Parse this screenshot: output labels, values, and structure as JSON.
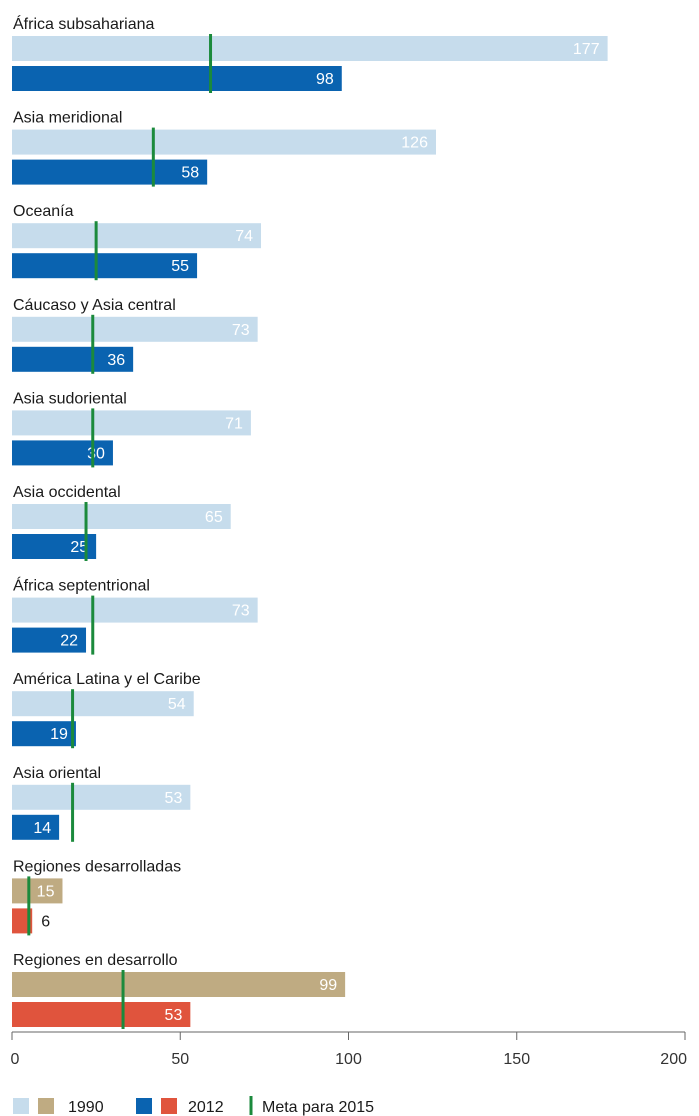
{
  "chart_data": {
    "type": "bar",
    "orientation": "horizontal",
    "xlim": [
      0,
      200
    ],
    "x_ticks": [
      "0",
      "50",
      "100",
      "150",
      "200"
    ],
    "categories": [
      "África subsahariana",
      "Asia meridional",
      "Oceanía",
      "Cáucaso y Asia central",
      "Asia sudoriental",
      "Asia occidental",
      "África septentrional",
      "América Latina y el Caribe",
      "Asia oriental",
      "Regiones desarrolladas",
      "Regiones en desarrollo"
    ],
    "series": [
      {
        "name": "1990",
        "values": [
          177,
          126,
          74,
          73,
          71,
          65,
          73,
          54,
          53,
          15,
          99
        ]
      },
      {
        "name": "2012",
        "values": [
          98,
          58,
          55,
          36,
          30,
          25,
          22,
          19,
          14,
          6,
          53
        ]
      }
    ],
    "target": {
      "name": "Meta para 2015",
      "values": [
        59,
        42,
        25,
        24,
        24,
        22,
        24,
        18,
        18,
        5,
        33
      ]
    },
    "groups": [
      "regional",
      "regional",
      "regional",
      "regional",
      "regional",
      "regional",
      "regional",
      "regional",
      "regional",
      "aggregate",
      "aggregate"
    ],
    "colors": {
      "regional_1990": "#c6dcec",
      "regional_2012": "#0a63b0",
      "aggregate_1990": "#bfab82",
      "aggregate_2012": "#e0543d",
      "target": "#1b8a3c",
      "label_1990_regional": "#ffffff",
      "label_2012": "#ffffff",
      "label_outside": "#1a1a1a",
      "axis": "#666666"
    },
    "legend": {
      "position": "bottom-left",
      "label_1990": "1990",
      "label_2012": "2012",
      "label_target": "Meta para 2015"
    },
    "grid": false
  }
}
